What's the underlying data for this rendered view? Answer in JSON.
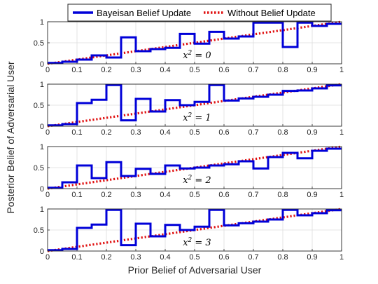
{
  "figure": {
    "xlabel": "Prior Belief of Adversarial User",
    "ylabel": "Posterior Belief of Adversarial User"
  },
  "legend": {
    "placement": "top-center",
    "items": [
      {
        "label": "Bayeisan Belief Update",
        "color": "#0000d8",
        "style": "solid"
      },
      {
        "label": "Without Belief Update",
        "color": "#e01010",
        "style": "dotted"
      }
    ]
  },
  "chart_data": [
    {
      "type": "line",
      "annotation": "x² = 0",
      "annotation_base": "x",
      "annotation_exp": "2",
      "annotation_rest": " = 0",
      "xlim": [
        0,
        1
      ],
      "ylim": [
        0,
        1
      ],
      "xticks": [
        "0",
        "0.1",
        "0.2",
        "0.3",
        "0.4",
        "0.5",
        "0.6",
        "0.7",
        "0.8",
        "0.9",
        "1"
      ],
      "yticks": [
        "0",
        "0.5",
        "1"
      ],
      "grid": true,
      "series": [
        {
          "name": "Bayeisan Belief Update",
          "style": "step",
          "x": [
            0,
            0.05,
            0.1,
            0.15,
            0.2,
            0.25,
            0.3,
            0.35,
            0.4,
            0.45,
            0.5,
            0.55,
            0.6,
            0.65,
            0.7,
            0.75,
            0.8,
            0.85,
            0.9,
            0.95
          ],
          "y": [
            0.02,
            0.05,
            0.1,
            0.2,
            0.15,
            0.63,
            0.3,
            0.35,
            0.38,
            0.71,
            0.48,
            0.76,
            0.6,
            0.65,
            0.98,
            0.98,
            0.4,
            0.98,
            0.9,
            0.95
          ]
        },
        {
          "name": "Without Belief Update",
          "style": "dotted",
          "x": [
            0,
            1
          ],
          "y": [
            0,
            1
          ]
        }
      ]
    },
    {
      "type": "line",
      "annotation": "x² = 1",
      "annotation_base": "x",
      "annotation_exp": "2",
      "annotation_rest": " = 1",
      "xlim": [
        0,
        1
      ],
      "ylim": [
        0,
        1
      ],
      "xticks": [
        "0",
        "0.1",
        "0.2",
        "0.3",
        "0.4",
        "0.5",
        "0.6",
        "0.7",
        "0.8",
        "0.9",
        "1"
      ],
      "yticks": [
        "0",
        "0.5",
        "1"
      ],
      "grid": true,
      "series": [
        {
          "name": "Bayeisan Belief Update",
          "style": "step",
          "x": [
            0,
            0.05,
            0.1,
            0.15,
            0.2,
            0.25,
            0.3,
            0.35,
            0.4,
            0.45,
            0.5,
            0.55,
            0.6,
            0.65,
            0.7,
            0.75,
            0.8,
            0.85,
            0.9,
            0.95
          ],
          "y": [
            0.02,
            0.05,
            0.55,
            0.63,
            0.98,
            0.14,
            0.65,
            0.35,
            0.62,
            0.5,
            0.58,
            0.98,
            0.61,
            0.66,
            0.7,
            0.75,
            0.84,
            0.85,
            0.9,
            0.97
          ]
        },
        {
          "name": "Without Belief Update",
          "style": "dotted",
          "x": [
            0,
            1
          ],
          "y": [
            0,
            1
          ]
        }
      ]
    },
    {
      "type": "line",
      "annotation": "x² = 2",
      "annotation_base": "x",
      "annotation_exp": "2",
      "annotation_rest": " = 2",
      "xlim": [
        0,
        1
      ],
      "ylim": [
        0,
        1
      ],
      "xticks": [
        "0",
        "0.1",
        "0.2",
        "0.3",
        "0.4",
        "0.5",
        "0.6",
        "0.7",
        "0.8",
        "0.9",
        "1"
      ],
      "yticks": [
        "0",
        "0.5",
        "1"
      ],
      "grid": true,
      "series": [
        {
          "name": "Bayeisan Belief Update",
          "style": "step",
          "x": [
            0,
            0.05,
            0.1,
            0.15,
            0.2,
            0.25,
            0.3,
            0.35,
            0.4,
            0.45,
            0.5,
            0.55,
            0.6,
            0.65,
            0.7,
            0.75,
            0.8,
            0.85,
            0.9,
            0.95
          ],
          "y": [
            0.02,
            0.15,
            0.55,
            0.25,
            0.63,
            0.3,
            0.47,
            0.35,
            0.55,
            0.48,
            0.5,
            0.55,
            0.58,
            0.65,
            0.48,
            0.75,
            0.85,
            0.72,
            0.9,
            0.95
          ]
        },
        {
          "name": "Without Belief Update",
          "style": "dotted",
          "x": [
            0,
            1
          ],
          "y": [
            0,
            1
          ]
        }
      ]
    },
    {
      "type": "line",
      "annotation": "x² = 3",
      "annotation_base": "x",
      "annotation_exp": "2",
      "annotation_rest": " = 3",
      "xlim": [
        0,
        1
      ],
      "ylim": [
        0,
        1
      ],
      "xticks": [
        "0",
        "0.1",
        "0.2",
        "0.3",
        "0.4",
        "0.5",
        "0.6",
        "0.7",
        "0.8",
        "0.9",
        "1"
      ],
      "yticks": [
        "0",
        "0.5",
        "1"
      ],
      "grid": true,
      "series": [
        {
          "name": "Bayeisan Belief Update",
          "style": "step",
          "x": [
            0,
            0.05,
            0.1,
            0.15,
            0.2,
            0.25,
            0.3,
            0.35,
            0.4,
            0.45,
            0.5,
            0.55,
            0.6,
            0.65,
            0.7,
            0.75,
            0.8,
            0.85,
            0.9,
            0.95
          ],
          "y": [
            0.02,
            0.05,
            0.55,
            0.63,
            0.98,
            0.14,
            0.65,
            0.35,
            0.62,
            0.5,
            0.58,
            0.98,
            0.61,
            0.66,
            0.7,
            0.75,
            0.98,
            0.85,
            0.9,
            0.97
          ]
        },
        {
          "name": "Without Belief Update",
          "style": "dotted",
          "x": [
            0,
            1
          ],
          "y": [
            0,
            1
          ]
        }
      ]
    }
  ]
}
